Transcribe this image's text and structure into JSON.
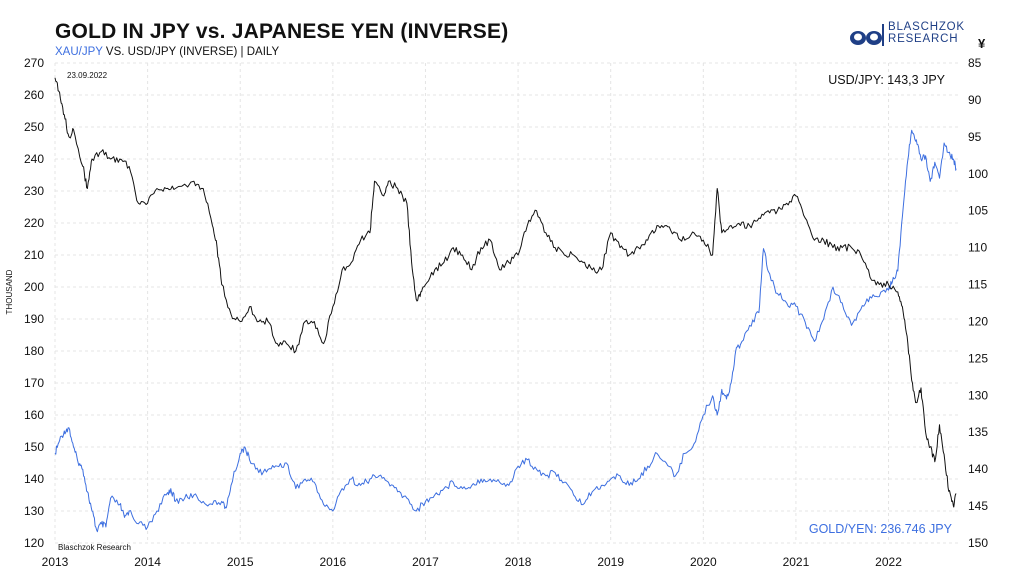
{
  "header": {
    "title": "GOLD IN JPY vs. JAPANESE YEN (INVERSE)",
    "subtitle_blue": "XAU/JPY",
    "subtitle_rest": " VS. USD/JPY (INVERSE) | DAILY",
    "logo_line1": "BLASCHZOK",
    "logo_line2": "RESEARCH",
    "yen_symbol": "¥"
  },
  "colors": {
    "gold_jpy": "#3d6fe0",
    "usd_jpy": "#111111",
    "grid": "#e4e4e4"
  },
  "chart_data": {
    "type": "line",
    "title": "GOLD IN JPY vs. JAPANESE YEN (INVERSE)",
    "subtitle": "XAU/JPY VS. USD/JPY (INVERSE) | DAILY",
    "date_label": "23.09.2022",
    "source_label": "Blaschzok Research",
    "x_ticks": [
      "2013",
      "2014",
      "2015",
      "2016",
      "2017",
      "2018",
      "2019",
      "2020",
      "2021",
      "2022"
    ],
    "x_range": [
      2013.0,
      2022.75
    ],
    "y_left": {
      "label": "THOUSAND",
      "range": [
        120,
        270
      ],
      "ticks": [
        120,
        130,
        140,
        150,
        160,
        170,
        180,
        190,
        200,
        210,
        220,
        230,
        240,
        250,
        260,
        270
      ]
    },
    "y_right": {
      "label": "¥",
      "range": [
        85,
        150
      ],
      "inverted": true,
      "ticks": [
        85,
        90,
        95,
        100,
        105,
        110,
        115,
        120,
        125,
        130,
        135,
        140,
        145,
        150
      ]
    },
    "grid": true,
    "annotations": {
      "usd_jpy": "USD/JPY: 143,3 JPY",
      "gold_jpy": "GOLD/YEN: 236.746 JPY"
    },
    "series": [
      {
        "axis": "left",
        "color": "#3d6fe0",
        "points": [
          [
            2013.0,
            148
          ],
          [
            2013.05,
            152
          ],
          [
            2013.1,
            155
          ],
          [
            2013.15,
            156
          ],
          [
            2013.2,
            150
          ],
          [
            2013.25,
            145
          ],
          [
            2013.3,
            143
          ],
          [
            2013.35,
            136
          ],
          [
            2013.4,
            130
          ],
          [
            2013.45,
            124
          ],
          [
            2013.5,
            126
          ],
          [
            2013.55,
            125
          ],
          [
            2013.6,
            134
          ],
          [
            2013.7,
            132
          ],
          [
            2013.75,
            128
          ],
          [
            2013.8,
            130
          ],
          [
            2013.9,
            126
          ],
          [
            2014.0,
            125
          ],
          [
            2014.1,
            130
          ],
          [
            2014.2,
            135
          ],
          [
            2014.25,
            137
          ],
          [
            2014.3,
            133
          ],
          [
            2014.4,
            134
          ],
          [
            2014.5,
            135
          ],
          [
            2014.6,
            133
          ],
          [
            2014.7,
            132
          ],
          [
            2014.8,
            133
          ],
          [
            2014.85,
            131
          ],
          [
            2014.9,
            138
          ],
          [
            2015.0,
            148
          ],
          [
            2015.05,
            150
          ],
          [
            2015.1,
            146
          ],
          [
            2015.2,
            142
          ],
          [
            2015.3,
            143
          ],
          [
            2015.4,
            144
          ],
          [
            2015.5,
            145
          ],
          [
            2015.6,
            137
          ],
          [
            2015.7,
            140
          ],
          [
            2015.8,
            139
          ],
          [
            2015.9,
            132
          ],
          [
            2016.0,
            130
          ],
          [
            2016.1,
            137
          ],
          [
            2016.2,
            140
          ],
          [
            2016.3,
            138
          ],
          [
            2016.4,
            140
          ],
          [
            2016.5,
            141
          ],
          [
            2016.6,
            139
          ],
          [
            2016.7,
            136
          ],
          [
            2016.8,
            134
          ],
          [
            2016.9,
            130
          ],
          [
            2017.0,
            133
          ],
          [
            2017.1,
            135
          ],
          [
            2017.2,
            137
          ],
          [
            2017.3,
            139
          ],
          [
            2017.4,
            137
          ],
          [
            2017.5,
            138
          ],
          [
            2017.6,
            140
          ],
          [
            2017.7,
            140
          ],
          [
            2017.8,
            139
          ],
          [
            2017.9,
            138
          ],
          [
            2018.0,
            144
          ],
          [
            2018.1,
            146
          ],
          [
            2018.2,
            143
          ],
          [
            2018.3,
            141
          ],
          [
            2018.4,
            142
          ],
          [
            2018.5,
            139
          ],
          [
            2018.6,
            135
          ],
          [
            2018.7,
            132
          ],
          [
            2018.8,
            136
          ],
          [
            2018.9,
            138
          ],
          [
            2019.0,
            140
          ],
          [
            2019.1,
            141
          ],
          [
            2019.2,
            138
          ],
          [
            2019.3,
            140
          ],
          [
            2019.4,
            144
          ],
          [
            2019.5,
            148
          ],
          [
            2019.6,
            145
          ],
          [
            2019.7,
            141
          ],
          [
            2019.8,
            148
          ],
          [
            2019.9,
            151
          ],
          [
            2020.0,
            160
          ],
          [
            2020.1,
            166
          ],
          [
            2020.15,
            160
          ],
          [
            2020.2,
            168
          ],
          [
            2020.25,
            165
          ],
          [
            2020.3,
            170
          ],
          [
            2020.35,
            180
          ],
          [
            2020.4,
            182
          ],
          [
            2020.5,
            188
          ],
          [
            2020.6,
            192
          ],
          [
            2020.65,
            212
          ],
          [
            2020.7,
            205
          ],
          [
            2020.8,
            198
          ],
          [
            2020.9,
            195
          ],
          [
            2021.0,
            194
          ],
          [
            2021.1,
            189
          ],
          [
            2021.2,
            183
          ],
          [
            2021.3,
            190
          ],
          [
            2021.4,
            200
          ],
          [
            2021.5,
            195
          ],
          [
            2021.6,
            188
          ],
          [
            2021.7,
            193
          ],
          [
            2021.8,
            197
          ],
          [
            2021.9,
            197
          ],
          [
            2022.0,
            199
          ],
          [
            2022.05,
            203
          ],
          [
            2022.1,
            205
          ],
          [
            2022.15,
            222
          ],
          [
            2022.2,
            238
          ],
          [
            2022.25,
            249
          ],
          [
            2022.3,
            246
          ],
          [
            2022.35,
            240
          ],
          [
            2022.4,
            241
          ],
          [
            2022.45,
            233
          ],
          [
            2022.5,
            239
          ],
          [
            2022.55,
            234
          ],
          [
            2022.6,
            245
          ],
          [
            2022.65,
            242
          ],
          [
            2022.7,
            240
          ],
          [
            2022.73,
            237
          ]
        ]
      },
      {
        "axis": "right",
        "color": "#111111",
        "points": [
          [
            2013.0,
            87
          ],
          [
            2013.05,
            89
          ],
          [
            2013.1,
            92
          ],
          [
            2013.15,
            95
          ],
          [
            2013.2,
            94
          ],
          [
            2013.3,
            99
          ],
          [
            2013.35,
            102
          ],
          [
            2013.4,
            98
          ],
          [
            2013.5,
            97
          ],
          [
            2013.6,
            98
          ],
          [
            2013.7,
            98
          ],
          [
            2013.8,
            99
          ],
          [
            2013.9,
            104
          ],
          [
            2014.0,
            104
          ],
          [
            2014.1,
            102
          ],
          [
            2014.2,
            102
          ],
          [
            2014.3,
            102
          ],
          [
            2014.5,
            101
          ],
          [
            2014.6,
            102
          ],
          [
            2014.7,
            107
          ],
          [
            2014.75,
            110
          ],
          [
            2014.8,
            115
          ],
          [
            2014.9,
            119
          ],
          [
            2015.0,
            120
          ],
          [
            2015.1,
            118
          ],
          [
            2015.2,
            120
          ],
          [
            2015.3,
            120
          ],
          [
            2015.4,
            123
          ],
          [
            2015.5,
            123
          ],
          [
            2015.6,
            124
          ],
          [
            2015.7,
            120
          ],
          [
            2015.8,
            120
          ],
          [
            2015.9,
            123
          ],
          [
            2016.0,
            118
          ],
          [
            2016.1,
            113
          ],
          [
            2016.2,
            112
          ],
          [
            2016.3,
            109
          ],
          [
            2016.4,
            108
          ],
          [
            2016.45,
            101
          ],
          [
            2016.55,
            103
          ],
          [
            2016.6,
            101
          ],
          [
            2016.7,
            102
          ],
          [
            2016.8,
            104
          ],
          [
            2016.85,
            112
          ],
          [
            2016.9,
            117
          ],
          [
            2016.95,
            116
          ],
          [
            2017.0,
            115
          ],
          [
            2017.1,
            113
          ],
          [
            2017.2,
            112
          ],
          [
            2017.3,
            110
          ],
          [
            2017.4,
            111
          ],
          [
            2017.5,
            113
          ],
          [
            2017.6,
            110
          ],
          [
            2017.7,
            109
          ],
          [
            2017.8,
            113
          ],
          [
            2017.9,
            112
          ],
          [
            2018.0,
            111
          ],
          [
            2018.1,
            107
          ],
          [
            2018.2,
            105
          ],
          [
            2018.3,
            108
          ],
          [
            2018.4,
            110
          ],
          [
            2018.5,
            111
          ],
          [
            2018.6,
            111
          ],
          [
            2018.7,
            112
          ],
          [
            2018.8,
            113
          ],
          [
            2018.9,
            113
          ],
          [
            2019.0,
            108
          ],
          [
            2019.1,
            110
          ],
          [
            2019.2,
            111
          ],
          [
            2019.3,
            110
          ],
          [
            2019.4,
            109
          ],
          [
            2019.5,
            107
          ],
          [
            2019.6,
            107
          ],
          [
            2019.7,
            108
          ],
          [
            2019.8,
            109
          ],
          [
            2019.9,
            108
          ],
          [
            2020.0,
            109
          ],
          [
            2020.1,
            111
          ],
          [
            2020.15,
            102
          ],
          [
            2020.2,
            108
          ],
          [
            2020.3,
            107
          ],
          [
            2020.4,
            107
          ],
          [
            2020.5,
            107
          ],
          [
            2020.6,
            106
          ],
          [
            2020.7,
            105
          ],
          [
            2020.8,
            105
          ],
          [
            2020.9,
            104
          ],
          [
            2021.0,
            103
          ],
          [
            2021.1,
            106
          ],
          [
            2021.2,
            109
          ],
          [
            2021.3,
            109
          ],
          [
            2021.4,
            110
          ],
          [
            2021.5,
            110
          ],
          [
            2021.6,
            110
          ],
          [
            2021.7,
            111
          ],
          [
            2021.8,
            114
          ],
          [
            2021.9,
            115
          ],
          [
            2022.0,
            115
          ],
          [
            2022.1,
            116
          ],
          [
            2022.15,
            118
          ],
          [
            2022.2,
            122
          ],
          [
            2022.25,
            128
          ],
          [
            2022.3,
            131
          ],
          [
            2022.35,
            129
          ],
          [
            2022.4,
            135
          ],
          [
            2022.45,
            137
          ],
          [
            2022.5,
            139
          ],
          [
            2022.55,
            134
          ],
          [
            2022.6,
            138
          ],
          [
            2022.65,
            143
          ],
          [
            2022.7,
            145
          ],
          [
            2022.73,
            143.3
          ]
        ]
      }
    ]
  }
}
